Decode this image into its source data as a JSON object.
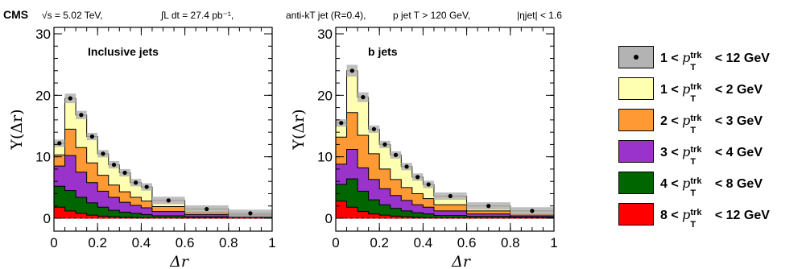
{
  "header": {
    "experiment": "CMS",
    "sqrt_s": "√s = 5.02 TeV,",
    "lumi": "∫L dt = 27.4 pb⁻¹,",
    "jet_def": "anti-kT jet (R=0.4),",
    "pt_cut": "p jet T > 120 GeV,",
    "eta_cut": "|ηjet| < 1.6"
  },
  "legend": {
    "labels": [
      "1 < ",
      "1 < ",
      "2 < ",
      "3 < ",
      "4 < ",
      "8 < "
    ],
    "units": [
      " < 12 GeV",
      " < 2 GeV",
      " < 3 GeV",
      " < 4 GeV",
      " < 8 GeV",
      " < 12 GeV"
    ],
    "colors": [
      "#b3b3b3",
      "#ffffb2",
      "#ff9933",
      "#9933cc",
      "#006600",
      "#ff0000"
    ]
  },
  "chart_data": [
    {
      "type": "area",
      "title": "Inclusive jets",
      "xlabel": "Δr",
      "ylabel": "Y(Δr)",
      "xlim": [
        0,
        1
      ],
      "ylim": [
        0,
        30
      ],
      "x_edges": [
        0,
        0.05,
        0.1,
        0.15,
        0.2,
        0.25,
        0.3,
        0.35,
        0.4,
        0.45,
        0.6,
        0.8,
        1.0
      ],
      "x_ticks": [
        "0",
        "0.2",
        "0.4",
        "0.6",
        "0.8",
        "1"
      ],
      "y_ticks": [
        "0",
        "10",
        "20",
        "30"
      ],
      "series": [
        {
          "name": "8 < pT trk < 12 GeV",
          "values": [
            1.8,
            1.2,
            0.8,
            0.5,
            0.35,
            0.25,
            0.18,
            0.12,
            0.08,
            0.05,
            0.03,
            0.02
          ]
        },
        {
          "name": "4 < pT trk < 8 GeV",
          "values": [
            5.2,
            4.5,
            3.4,
            2.5,
            1.8,
            1.3,
            1.0,
            0.8,
            0.6,
            0.4,
            0.25,
            0.15
          ]
        },
        {
          "name": "3 < pT trk < 4 GeV",
          "values": [
            8.5,
            10.2,
            7.5,
            5.8,
            4.4,
            3.4,
            2.6,
            2.1,
            1.7,
            1.1,
            0.6,
            0.35
          ]
        },
        {
          "name": "2 < pT trk < 3 GeV",
          "values": [
            10.3,
            14.5,
            11.5,
            9.0,
            7.0,
            5.4,
            4.3,
            3.4,
            2.8,
            1.9,
            1.0,
            0.55
          ]
        },
        {
          "name": "1 < pT trk < 2 GeV",
          "values": [
            12.2,
            19.5,
            16.8,
            13.3,
            10.5,
            8.7,
            7.4,
            5.8,
            5.1,
            2.9,
            1.5,
            0.8
          ]
        }
      ],
      "total_points": [
        12.2,
        19.5,
        16.8,
        13.3,
        10.5,
        8.7,
        7.4,
        5.8,
        5.1,
        2.9,
        1.5,
        0.8
      ]
    },
    {
      "type": "area",
      "title": "b jets",
      "xlabel": "Δr",
      "ylabel": "Y(Δr)",
      "xlim": [
        0,
        1
      ],
      "ylim": [
        0,
        30
      ],
      "x_edges": [
        0,
        0.05,
        0.1,
        0.15,
        0.2,
        0.25,
        0.3,
        0.35,
        0.4,
        0.45,
        0.6,
        0.8,
        1.0
      ],
      "x_ticks": [
        "0",
        "0.2",
        "0.4",
        "0.6",
        "0.8",
        "1"
      ],
      "y_ticks": [
        "0",
        "10",
        "20",
        "30"
      ],
      "series": [
        {
          "name": "8 < pT trk < 12 GeV",
          "values": [
            2.8,
            1.8,
            1.1,
            0.7,
            0.5,
            0.35,
            0.25,
            0.15,
            0.1,
            0.06,
            0.04,
            0.02
          ]
        },
        {
          "name": "4 < pT trk < 8 GeV",
          "values": [
            5.5,
            6.4,
            4.4,
            3.0,
            2.2,
            1.6,
            1.2,
            0.9,
            0.7,
            0.45,
            0.3,
            0.2
          ]
        },
        {
          "name": "3 < pT trk < 4 GeV",
          "values": [
            8.8,
            11.2,
            8.2,
            6.3,
            4.8,
            3.7,
            2.9,
            2.2,
            1.8,
            1.2,
            0.7,
            0.4
          ]
        },
        {
          "name": "2 < pT trk < 3 GeV",
          "values": [
            13.2,
            17.2,
            13.5,
            10.5,
            8.0,
            6.3,
            5.0,
            4.0,
            3.2,
            2.2,
            1.2,
            0.65
          ]
        },
        {
          "name": "1 < pT trk < 2 GeV",
          "values": [
            15.5,
            24.0,
            19.7,
            14.5,
            12.0,
            10.3,
            8.4,
            6.7,
            5.5,
            3.6,
            2.0,
            1.2
          ]
        }
      ],
      "total_points": [
        15.5,
        24.0,
        19.7,
        14.5,
        12.0,
        10.3,
        8.4,
        6.7,
        5.5,
        3.6,
        2.0,
        1.2
      ]
    }
  ]
}
